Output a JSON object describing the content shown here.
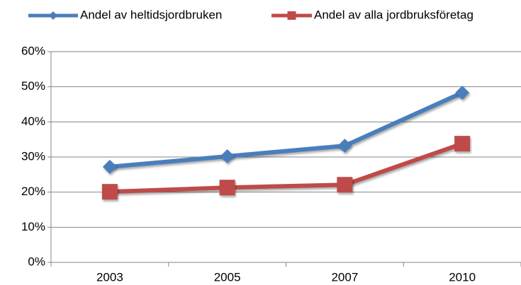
{
  "chart_data": {
    "type": "line",
    "categories": [
      "2003",
      "2005",
      "2007",
      "2010"
    ],
    "series": [
      {
        "name": "Andel av heltidsjordbruken",
        "color": "#4a7ebb",
        "marker": "diamond",
        "values": [
          27.2,
          30.2,
          33.2,
          48.3
        ]
      },
      {
        "name": "Andel av alla jordbruksföretag",
        "color": "#be4b48",
        "marker": "square",
        "values": [
          20.1,
          21.3,
          22.1,
          33.8
        ]
      }
    ],
    "ylim": [
      0,
      60
    ],
    "yticks": [
      {
        "value": 0,
        "label": "0%"
      },
      {
        "value": 10,
        "label": "10%"
      },
      {
        "value": 20,
        "label": "20%"
      },
      {
        "value": 30,
        "label": "30%"
      },
      {
        "value": 40,
        "label": "40%"
      },
      {
        "value": 50,
        "label": "50%"
      },
      {
        "value": 60,
        "label": "60%"
      }
    ],
    "grid": true,
    "legend": "top"
  }
}
